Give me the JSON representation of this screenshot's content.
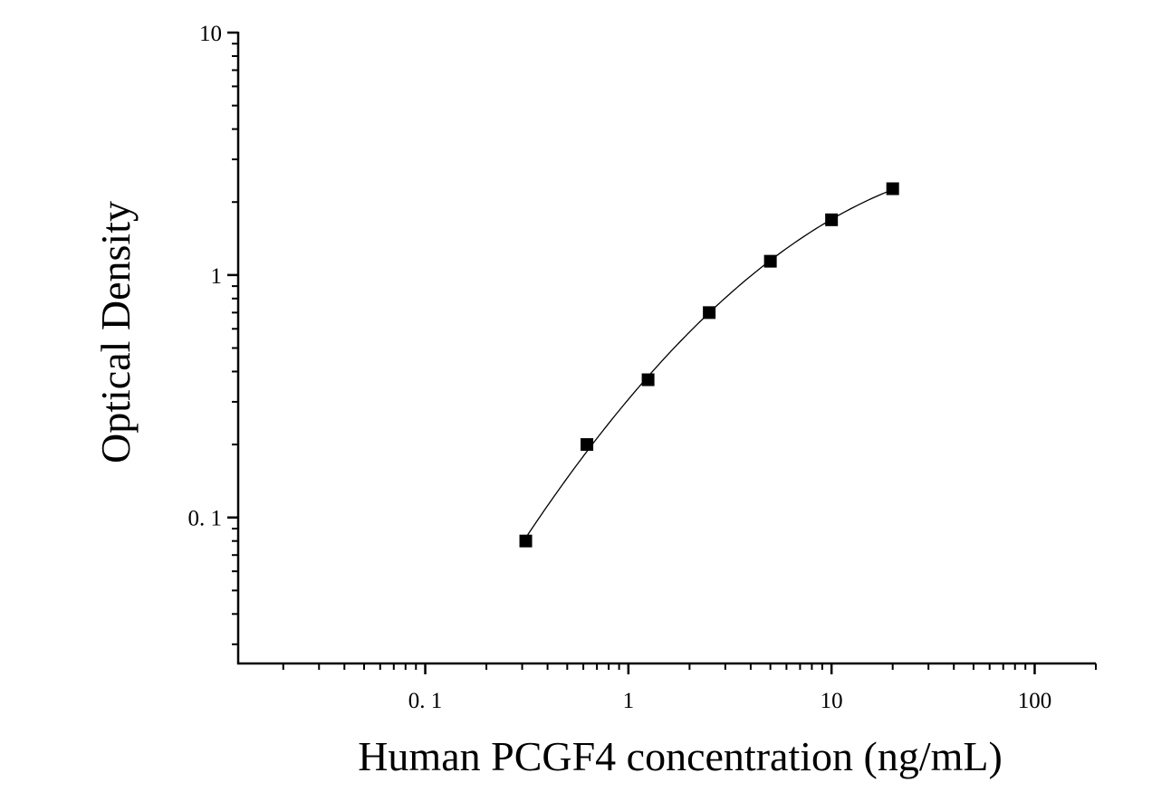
{
  "chart_data": {
    "type": "scatter",
    "title": "",
    "xlabel": "Human PCGF4 concentration (ng/mL)",
    "ylabel": "Optical Density",
    "x_scale": "log",
    "y_scale": "log",
    "xlim": [
      0.012,
      200
    ],
    "ylim": [
      0.025,
      10
    ],
    "x_ticks": [
      0.1,
      1,
      10,
      100
    ],
    "x_tick_labels": [
      "0. 1",
      "1",
      "10",
      "100"
    ],
    "y_ticks": [
      0.1,
      1,
      10
    ],
    "y_tick_labels": [
      "0. 1",
      "1",
      "10"
    ],
    "grid": false,
    "series": [
      {
        "points": [
          {
            "x": 0.3125,
            "y": 0.08
          },
          {
            "x": 0.625,
            "y": 0.2
          },
          {
            "x": 1.25,
            "y": 0.37
          },
          {
            "x": 2.5,
            "y": 0.7
          },
          {
            "x": 5,
            "y": 1.14
          },
          {
            "x": 10,
            "y": 1.69
          },
          {
            "x": 20,
            "y": 2.27
          }
        ],
        "marker": "square",
        "fit_line": true,
        "color": "#000000"
      }
    ]
  }
}
